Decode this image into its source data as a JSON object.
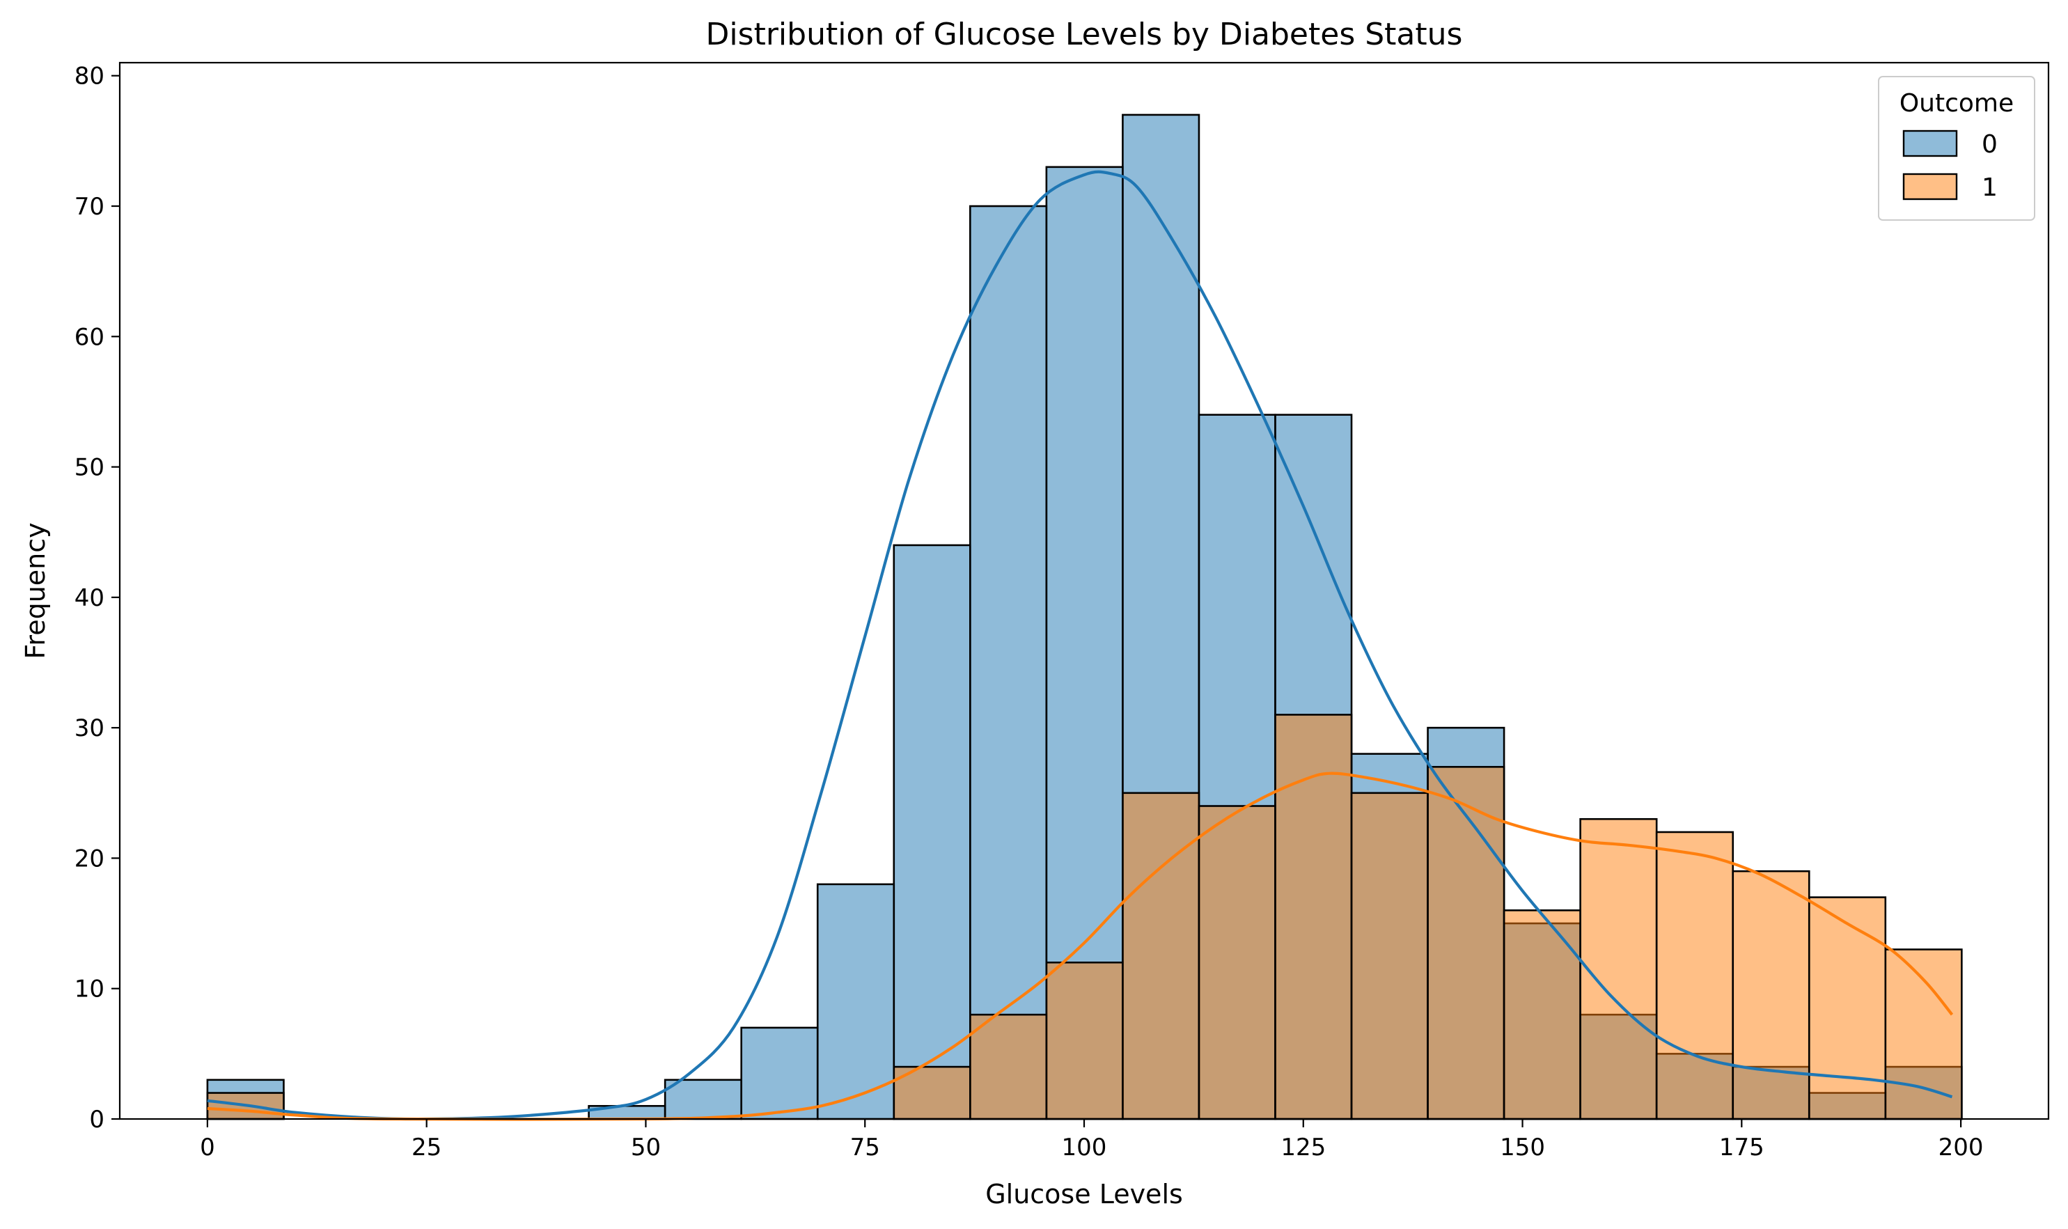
{
  "chart_data": {
    "type": "bar",
    "subtype": "histogram-with-kde",
    "title": "Distribution of Glucose Levels by Diabetes Status",
    "xlabel": "Glucose Levels",
    "ylabel": "Frequency",
    "xlim": [
      -10,
      210
    ],
    "ylim": [
      0,
      81
    ],
    "xticks": [
      0,
      25,
      50,
      75,
      100,
      125,
      150,
      175,
      200
    ],
    "yticks": [
      0,
      10,
      20,
      30,
      40,
      50,
      60,
      70,
      80
    ],
    "grid": false,
    "bin_width": 8.7,
    "bin_edges": [
      0,
      8.7,
      17.4,
      26.1,
      34.8,
      43.5,
      52.2,
      60.9,
      69.6,
      78.3,
      87.0,
      95.7,
      104.4,
      113.1,
      121.8,
      130.5,
      139.2,
      147.9,
      156.6,
      165.3,
      174.0,
      182.7,
      191.4,
      200.1
    ],
    "legend": {
      "title": "Outcome",
      "position": "top-right"
    },
    "series": [
      {
        "name": "0",
        "color": "#1f77b4",
        "values": [
          3,
          0,
          0,
          0,
          0,
          1,
          3,
          7,
          18,
          44,
          70,
          73,
          77,
          54,
          54,
          28,
          30,
          15,
          8,
          5,
          4,
          2,
          4
        ],
        "kde": [
          [
            0,
            1.4
          ],
          [
            5,
            1.0
          ],
          [
            10,
            0.5
          ],
          [
            18,
            0.1
          ],
          [
            25,
            0.0
          ],
          [
            35,
            0.2
          ],
          [
            45,
            0.8
          ],
          [
            50,
            1.5
          ],
          [
            55,
            3.5
          ],
          [
            60,
            7.0
          ],
          [
            65,
            14.0
          ],
          [
            70,
            25.0
          ],
          [
            75,
            37.0
          ],
          [
            80,
            49.0
          ],
          [
            85,
            58.5
          ],
          [
            90,
            65.5
          ],
          [
            95,
            70.5
          ],
          [
            100,
            72.4
          ],
          [
            103,
            72.5
          ],
          [
            106,
            71.5
          ],
          [
            110,
            67.5
          ],
          [
            115,
            61.5
          ],
          [
            120,
            54.5
          ],
          [
            125,
            47.0
          ],
          [
            130,
            39.0
          ],
          [
            135,
            32.0
          ],
          [
            140,
            26.5
          ],
          [
            145,
            22.0
          ],
          [
            150,
            17.5
          ],
          [
            155,
            13.5
          ],
          [
            160,
            9.5
          ],
          [
            165,
            6.5
          ],
          [
            170,
            4.8
          ],
          [
            175,
            4.0
          ],
          [
            180,
            3.6
          ],
          [
            185,
            3.3
          ],
          [
            190,
            3.0
          ],
          [
            195,
            2.5
          ],
          [
            199,
            1.7
          ]
        ]
      },
      {
        "name": "1",
        "color": "#ff7f0e",
        "values": [
          2,
          0,
          0,
          0,
          0,
          0,
          0,
          0,
          0,
          4,
          8,
          12,
          25,
          24,
          31,
          25,
          27,
          16,
          23,
          22,
          19,
          17,
          13
        ],
        "kde": [
          [
            0,
            0.8
          ],
          [
            5,
            0.6
          ],
          [
            10,
            0.3
          ],
          [
            20,
            0.0
          ],
          [
            50,
            0.0
          ],
          [
            60,
            0.2
          ],
          [
            65,
            0.5
          ],
          [
            70,
            1.0
          ],
          [
            75,
            2.0
          ],
          [
            80,
            3.5
          ],
          [
            85,
            5.5
          ],
          [
            90,
            8.0
          ],
          [
            95,
            10.5
          ],
          [
            100,
            13.5
          ],
          [
            105,
            17.0
          ],
          [
            110,
            20.0
          ],
          [
            115,
            22.5
          ],
          [
            120,
            24.5
          ],
          [
            125,
            26.0
          ],
          [
            128,
            26.5
          ],
          [
            132,
            26.2
          ],
          [
            137,
            25.5
          ],
          [
            142,
            24.5
          ],
          [
            147,
            23.0
          ],
          [
            152,
            22.0
          ],
          [
            157,
            21.3
          ],
          [
            162,
            21.0
          ],
          [
            167,
            20.6
          ],
          [
            172,
            20.0
          ],
          [
            177,
            18.8
          ],
          [
            182,
            17.0
          ],
          [
            187,
            15.0
          ],
          [
            192,
            13.0
          ],
          [
            196,
            10.5
          ],
          [
            199,
            8.0
          ]
        ]
      }
    ]
  }
}
